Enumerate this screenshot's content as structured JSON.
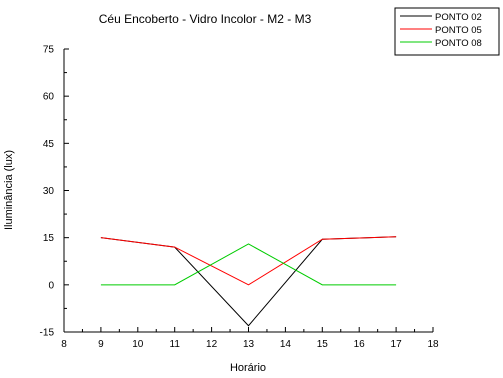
{
  "chart_data": {
    "type": "line",
    "title": "Céu Encoberto - Vidro Incolor - M2 - M3",
    "xlabel": "Horário",
    "ylabel": "Iluminância (lux)",
    "xlim": [
      8,
      18
    ],
    "ylim": [
      -15,
      75
    ],
    "xticks": [
      8,
      9,
      10,
      11,
      12,
      13,
      14,
      15,
      16,
      17,
      18
    ],
    "yticks": [
      -15,
      0,
      15,
      30,
      45,
      60,
      75
    ],
    "x": [
      9,
      11,
      13,
      15,
      17
    ],
    "series": [
      {
        "name": "PONTO 02",
        "color": "#000000",
        "values": [
          15,
          12,
          -13,
          14.5,
          15.3
        ]
      },
      {
        "name": "PONTO 05",
        "color": "#ff0000",
        "values": [
          15,
          12,
          0,
          14.5,
          15.3
        ]
      },
      {
        "name": "PONTO 08",
        "color": "#00cc00",
        "values": [
          0,
          0,
          13,
          0,
          0
        ]
      }
    ],
    "legend_position": "top-right",
    "grid": false
  }
}
